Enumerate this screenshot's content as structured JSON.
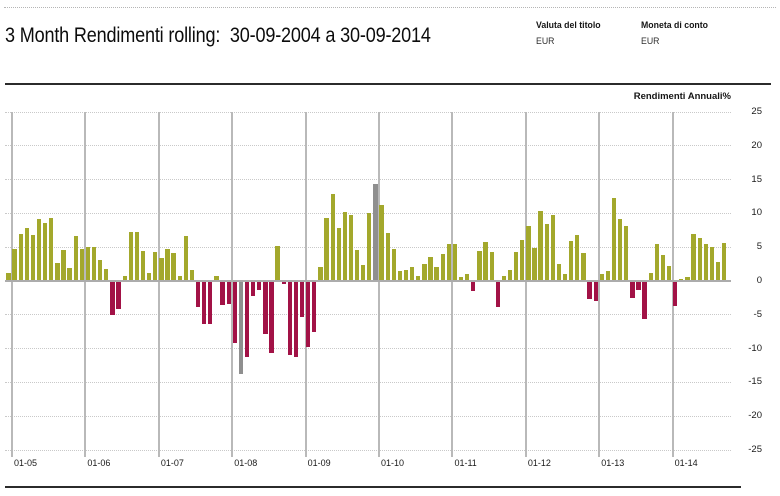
{
  "header": {
    "title": "3 Month Rendimenti rolling:  30-09-2004 a 30-09-2014",
    "fields": [
      {
        "label": "Valuta del titolo",
        "value": "EUR"
      },
      {
        "label": "Moneta di conto",
        "value": "EUR"
      }
    ]
  },
  "chart_data": {
    "type": "bar",
    "title": "Rendimenti Annuali%",
    "ylabel": "Rendimenti Annuali%",
    "xlabel": "",
    "ylim": [
      -25,
      25
    ],
    "y_ticks": [
      25,
      20,
      15,
      10,
      5,
      0,
      -5,
      -10,
      -15,
      -20,
      -25
    ],
    "x_tick_labels": [
      "01-05",
      "01-06",
      "01-07",
      "01-08",
      "01-09",
      "01-10",
      "01-11",
      "01-12",
      "01-13",
      "01-14"
    ],
    "grid": "horizontal dotted every 5, vertical solid line at each January",
    "legend_position": "none",
    "period_start": "30-09-2004",
    "period_end": "30-09-2014",
    "frequency": "monthly 3-month rolling return",
    "colors": {
      "positive": "#a3a82c",
      "negative": "#a21246",
      "highlight": "#8f8f8f"
    },
    "first_bar_month": "12-2004",
    "gray_highlight_indices": [
      38,
      60
    ],
    "values": [
      1.2,
      4.8,
      7.0,
      7.8,
      6.8,
      9.1,
      8.6,
      9.3,
      2.7,
      4.6,
      1.9,
      6.6,
      4.7,
      5.0,
      5.0,
      3.1,
      1.8,
      -5.1,
      -4.2,
      0.7,
      7.2,
      7.2,
      4.4,
      1.2,
      4.3,
      3.4,
      4.8,
      4.1,
      0.8,
      6.7,
      1.7,
      -3.9,
      -6.3,
      -6.3,
      0.8,
      -3.5,
      -3.4,
      -9.1,
      -13.7,
      -11.3,
      -2.2,
      -1.4,
      -7.8,
      -10.6,
      5.2,
      -0.5,
      -11.0,
      -11.2,
      -5.3,
      -9.7,
      -7.5,
      2.1,
      9.3,
      12.9,
      7.9,
      10.2,
      9.7,
      4.6,
      2.3,
      10.0,
      14.3,
      11.2,
      7.1,
      4.7,
      1.5,
      1.7,
      2.1,
      0.7,
      2.5,
      3.5,
      2.0,
      4.0,
      5.4,
      5.5,
      0.6,
      1.1,
      -1.5,
      4.4,
      5.8,
      4.3,
      -3.9,
      0.7,
      1.7,
      4.3,
      6.0,
      8.1,
      4.9,
      10.3,
      8.4,
      9.8,
      2.5,
      1.0,
      5.9,
      6.8,
      4.2,
      -2.6,
      -2.9,
      1.1,
      1.5,
      12.3,
      9.1,
      8.1,
      -2.5,
      -1.4,
      -5.6,
      1.2,
      5.5,
      3.9,
      2.2,
      -3.7,
      0.3,
      0.6,
      6.9,
      6.3,
      5.4,
      5.1,
      2.8,
      5.6
    ]
  }
}
